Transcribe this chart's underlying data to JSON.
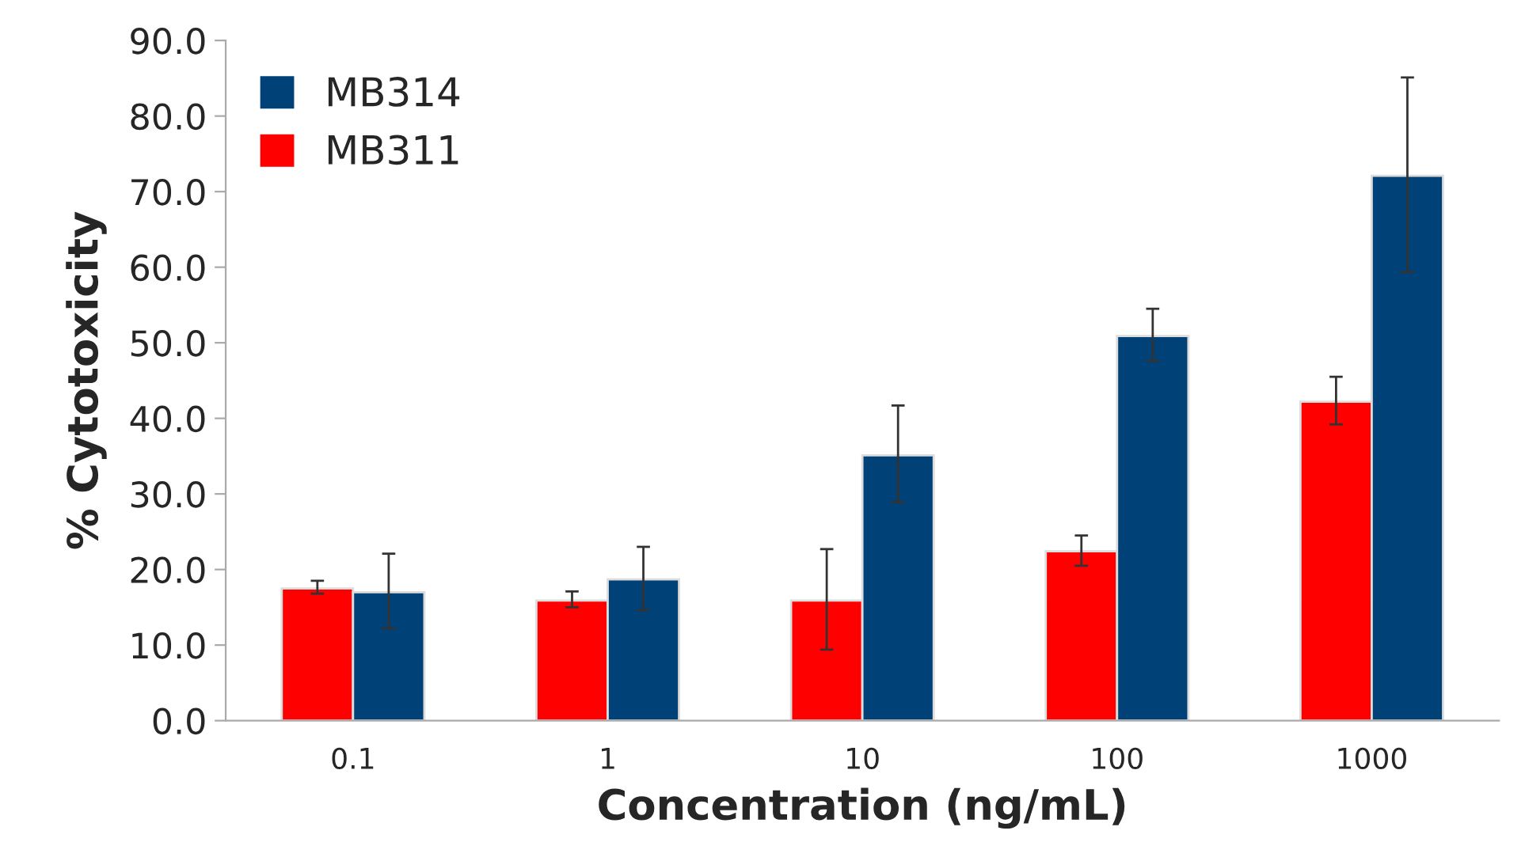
{
  "chart_data": {
    "type": "bar",
    "xlabel": "Concentration (ng/mL)",
    "ylabel": "% Cytotoxicity",
    "categories": [
      "0.1",
      "1",
      "10",
      "100",
      "1000"
    ],
    "series": [
      {
        "name": "MB311",
        "color": "#ff0000",
        "values": [
          17.5,
          15.9,
          15.9,
          22.4,
          42.2
        ],
        "errors": [
          [
            16.8,
            18.5
          ],
          [
            15.0,
            17.1
          ],
          [
            9.4,
            22.7
          ],
          [
            20.5,
            24.5
          ],
          [
            39.2,
            45.5
          ]
        ]
      },
      {
        "name": "MB314",
        "color": "#004178",
        "values": [
          17.0,
          18.7,
          35.1,
          50.9,
          72.1
        ],
        "errors": [
          [
            12.2,
            22.1
          ],
          [
            14.6,
            23.0
          ],
          [
            28.9,
            41.7
          ],
          [
            47.6,
            54.5
          ],
          [
            59.4,
            85.1
          ]
        ]
      }
    ],
    "ylim": [
      0,
      90
    ],
    "yticks": [
      {
        "value": 0,
        "label": "0.0"
      },
      {
        "value": 10,
        "label": "10.0"
      },
      {
        "value": 20,
        "label": "20.0"
      },
      {
        "value": 30,
        "label": "30.0"
      },
      {
        "value": 40,
        "label": "40.0"
      },
      {
        "value": 50,
        "label": "50.0"
      },
      {
        "value": 60,
        "label": "60.0"
      },
      {
        "value": 70,
        "label": "70.0"
      },
      {
        "value": 80,
        "label": "80.0"
      },
      {
        "value": 90,
        "label": "90.0"
      }
    ],
    "grid": false,
    "legend": "top left"
  }
}
